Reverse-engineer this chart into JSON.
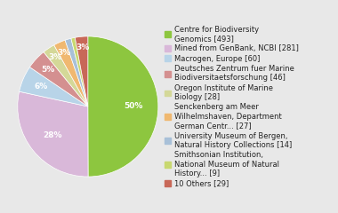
{
  "labels": [
    "Centre for Biodiversity\nGenomics [493]",
    "Mined from GenBank, NCBI [281]",
    "Macrogen, Europe [60]",
    "Deutsches Zentrum fuer Marine\nBiodiversitaetsforschung [46]",
    "Oregon Institute of Marine\nBiology [28]",
    "Senckenberg am Meer\nWilhelmshaven, Department\nGerman Centr... [27]",
    "University Museum of Bergen,\nNatural History Collections [14]",
    "Smithsonian Institution,\nNational Museum of Natural\nHistory... [9]",
    "10 Others [29]"
  ],
  "values": [
    493,
    281,
    60,
    46,
    28,
    27,
    14,
    9,
    29
  ],
  "colors": [
    "#8dc63f",
    "#d9b8d9",
    "#b8d4e8",
    "#d49090",
    "#d4d898",
    "#f0b870",
    "#a8c0d8",
    "#c8d870",
    "#c86858"
  ],
  "font_size_pct": 6.5,
  "font_size_legend": 6.0,
  "background_color": "#e8e8e8",
  "text_color": "#ffffff"
}
